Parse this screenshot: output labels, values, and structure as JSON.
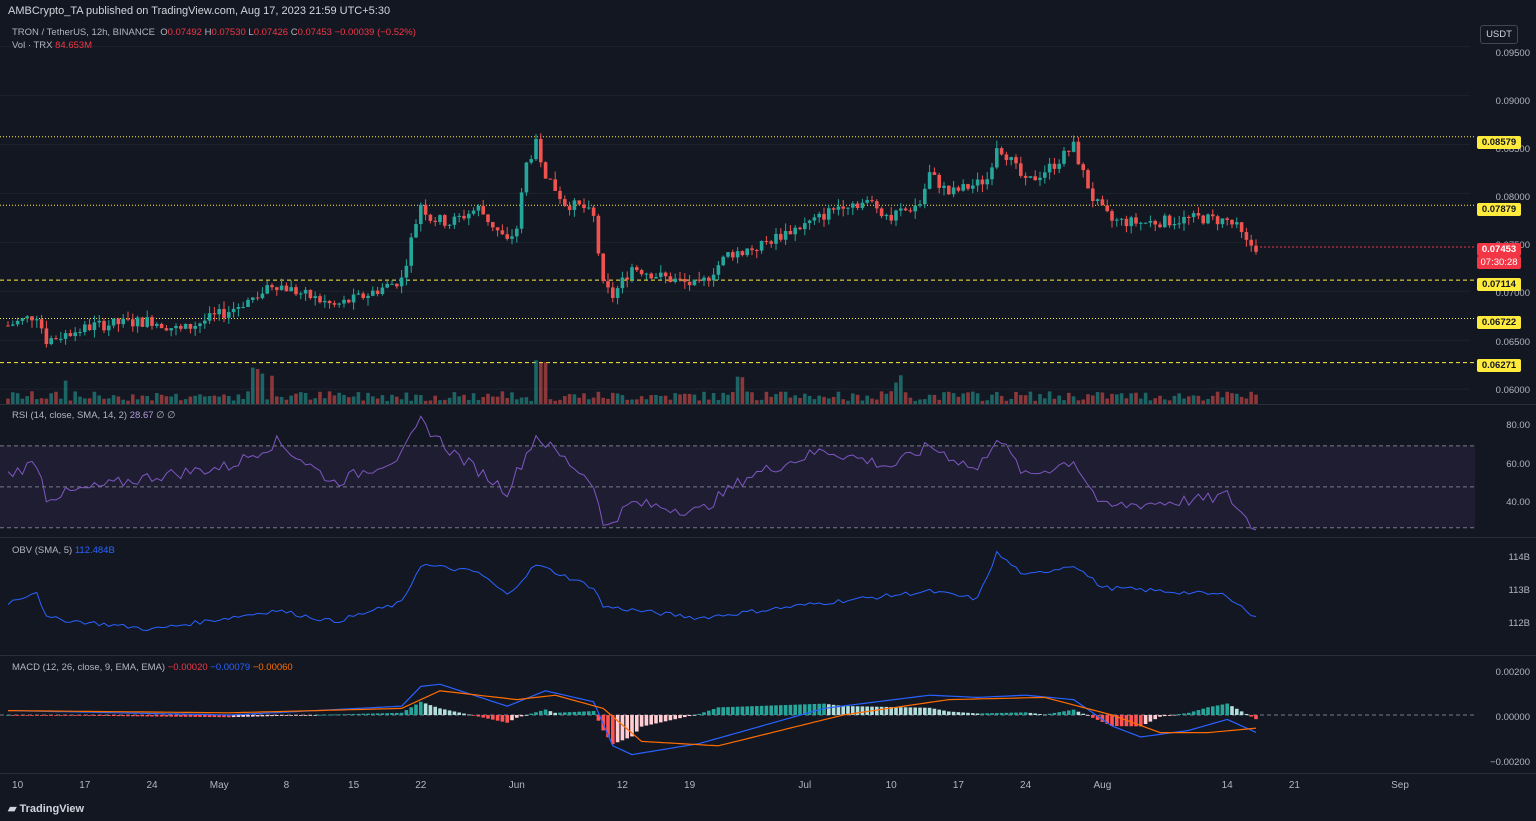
{
  "header": {
    "publisher": "AMBCrypto_TA published on TradingView.com, Aug 17, 2023 21:59 UTC+5:30"
  },
  "symbol": {
    "title": "TRON / TetherUS, 12h, BINANCE",
    "open_label": "O",
    "open": "0.07492",
    "high_label": "H",
    "high": "0.07530",
    "low_label": "L",
    "low": "0.07426",
    "close_label": "C",
    "close": "0.07453",
    "change": "−0.00039 (−0.52%)",
    "volume_label": "Vol · TRX",
    "volume": "84.653M"
  },
  "currency": "USDT",
  "price_axis": [
    "0.09500",
    "0.09000",
    "0.08500",
    "0.08000",
    "0.07500",
    "0.07000",
    "0.06500",
    "0.06000"
  ],
  "price_levels": [
    "0.08579",
    "0.07879",
    "0.07114",
    "0.06722",
    "0.06271"
  ],
  "last_price": {
    "price": "0.07453",
    "countdown": "07:30:28"
  },
  "rsi": {
    "label": "RSI (14, close, SMA, 14, 2)",
    "value": "28.67",
    "extra": "∅ ∅",
    "axis": [
      "80.00",
      "60.00",
      "40.00"
    ]
  },
  "obv": {
    "label": "OBV (SMA, 5)",
    "value": "112.484B",
    "axis": [
      "114B",
      "113B",
      "112B"
    ]
  },
  "macd": {
    "label": "MACD (12, 26, close, 9, EMA, EMA)",
    "histogram": "−0.00020",
    "macd": "−0.00079",
    "signal": "−0.00060",
    "axis": [
      "0.00200",
      "0.00000",
      "−0.00200"
    ]
  },
  "time_axis": [
    "10",
    "17",
    "24",
    "May",
    "8",
    "15",
    "22",
    "Jun",
    "12",
    "19",
    "Jul",
    "10",
    "17",
    "24",
    "Aug",
    "14",
    "21",
    "Sep"
  ],
  "footer": {
    "brand": "TradingView"
  },
  "colors": {
    "up": "#26a69a",
    "down": "#ef5350",
    "level": "#ffeb3b",
    "rsi": "#7e57c2",
    "obv": "#2962ff",
    "signal": "#ff6d00"
  },
  "chart_data": [
    {
      "type": "candlestick",
      "title": "TRON / TetherUS, 12h, BINANCE",
      "ylim": [
        0.0595,
        0.0965
      ],
      "x_start": "Apr 9, 2023",
      "x_end": "Aug 17, 2023",
      "interval": "12h",
      "horizontal_levels": [
        0.08579,
        0.07879,
        0.07114,
        0.06722,
        0.06271
      ],
      "close_keypoints": [
        [
          "Apr 9",
          0.0665
        ],
        [
          "Apr 12",
          0.0676
        ],
        [
          "Apr 13",
          0.065
        ],
        [
          "Apr 18",
          0.0665
        ],
        [
          "Apr 24",
          0.067
        ],
        [
          "Apr 27",
          0.066
        ],
        [
          "May 2",
          0.068
        ],
        [
          "May 7",
          0.0707
        ],
        [
          "May 13",
          0.0685
        ],
        [
          "May 16",
          0.0695
        ],
        [
          "May 20",
          0.0712
        ],
        [
          "May 21",
          0.0752
        ],
        [
          "May 22",
          0.079
        ],
        [
          "May 23",
          0.0775
        ],
        [
          "May 25",
          0.077
        ],
        [
          "May 28",
          0.0785
        ],
        [
          "May 31",
          0.075
        ],
        [
          "Jun 1",
          0.0765
        ],
        [
          "Jun 2",
          0.083
        ],
        [
          "Jun 3",
          0.085
        ],
        [
          "Jun 4",
          0.082
        ],
        [
          "Jun 6",
          0.079
        ],
        [
          "Jun 8",
          0.0785
        ],
        [
          "Jun 9",
          0.0775
        ],
        [
          "Jun 10",
          0.0705
        ],
        [
          "Jun 11",
          0.0695
        ],
        [
          "Jun 13",
          0.0725
        ],
        [
          "Jun 16",
          0.0715
        ],
        [
          "Jun 20",
          0.0705
        ],
        [
          "Jun 23",
          0.0738
        ],
        [
          "Jun 26",
          0.0745
        ],
        [
          "Jun 29",
          0.076
        ],
        [
          "Jul 2",
          0.0772
        ],
        [
          "Jul 5",
          0.079
        ],
        [
          "Jul 8",
          0.079
        ],
        [
          "Jul 10",
          0.0775
        ],
        [
          "Jul 13",
          0.079
        ],
        [
          "Jul 14",
          0.082
        ],
        [
          "Jul 16",
          0.08
        ],
        [
          "Jul 19",
          0.081
        ],
        [
          "Jul 20",
          0.0815
        ],
        [
          "Jul 21",
          0.085
        ],
        [
          "Jul 22",
          0.084
        ],
        [
          "Jul 24",
          0.081
        ],
        [
          "Jul 27",
          0.083
        ],
        [
          "Jul 29",
          0.0848
        ],
        [
          "Jul 30",
          0.082
        ],
        [
          "Jul 31",
          0.0795
        ],
        [
          "Aug 1",
          0.0782
        ],
        [
          "Aug 2",
          0.0772
        ],
        [
          "Aug 5",
          0.077
        ],
        [
          "Aug 8",
          0.0772
        ],
        [
          "Aug 11",
          0.0775
        ],
        [
          "Aug 14",
          0.0772
        ],
        [
          "Aug 15",
          0.0765
        ],
        [
          "Aug 16",
          0.0749
        ],
        [
          "Aug 17",
          0.07453
        ]
      ]
    },
    {
      "type": "line",
      "title": "RSI (14, close, SMA, 14, 2)",
      "ylim": [
        25,
        90
      ],
      "bands": [
        70,
        50,
        30
      ],
      "keypoints": [
        [
          "Apr 9",
          56
        ],
        [
          "Apr 12",
          62
        ],
        [
          "Apr 13",
          45
        ],
        [
          "Apr 24",
          55
        ],
        [
          "May 2",
          60
        ],
        [
          "May 7",
          72
        ],
        [
          "May 13",
          52
        ],
        [
          "May 20",
          65
        ],
        [
          "May 22",
          82
        ],
        [
          "May 25",
          68
        ],
        [
          "May 31",
          48
        ],
        [
          "Jun 3",
          75
        ],
        [
          "Jun 9",
          52
        ],
        [
          "Jun 10",
          30
        ],
        [
          "Jun 13",
          42
        ],
        [
          "Jun 20",
          38
        ],
        [
          "Jun 25",
          55
        ],
        [
          "Jul 3",
          68
        ],
        [
          "Jul 10",
          60
        ],
        [
          "Jul 14",
          70
        ],
        [
          "Jul 19",
          58
        ],
        [
          "Jul 21",
          75
        ],
        [
          "Jul 24",
          55
        ],
        [
          "Jul 29",
          63
        ],
        [
          "Aug 1",
          40
        ],
        [
          "Aug 6",
          42
        ],
        [
          "Aug 12",
          44
        ],
        [
          "Aug 14",
          46
        ],
        [
          "Aug 17",
          28.67
        ]
      ]
    },
    {
      "type": "line",
      "title": "OBV (SMA, 5)",
      "ylim": [
        111.5,
        114.6
      ],
      "keypoints": [
        [
          "Apr 9",
          112.9
        ],
        [
          "Apr 12",
          113.2
        ],
        [
          "Apr 13",
          112.5
        ],
        [
          "Apr 24",
          112.2
        ],
        [
          "May 7",
          112.7
        ],
        [
          "May 13",
          112.4
        ],
        [
          "May 20",
          112.9
        ],
        [
          "May 22",
          113.9
        ],
        [
          "May 28",
          113.7
        ],
        [
          "May 31",
          113.1
        ],
        [
          "Jun 3",
          113.9
        ],
        [
          "Jun 9",
          113.3
        ],
        [
          "Jun 10",
          112.8
        ],
        [
          "Jun 20",
          112.5
        ],
        [
          "Jul 3",
          112.9
        ],
        [
          "Jul 14",
          113.2
        ],
        [
          "Jul 19",
          113.0
        ],
        [
          "Jul 21",
          114.2
        ],
        [
          "Jul 24",
          113.6
        ],
        [
          "Jul 29",
          113.9
        ],
        [
          "Aug 1",
          113.3
        ],
        [
          "Aug 14",
          113.1
        ],
        [
          "Aug 17",
          112.484
        ]
      ]
    },
    {
      "type": "bar+line",
      "title": "MACD (12, 26, close, 9, EMA, EMA)",
      "ylim": [
        -0.0025,
        0.0025
      ],
      "macd_keypoints": [
        [
          "Apr 9",
          0.0002
        ],
        [
          "May 2",
          0.0
        ],
        [
          "May 20",
          0.0004
        ],
        [
          "May 22",
          0.0013
        ],
        [
          "May 24",
          0.0014
        ],
        [
          "May 31",
          0.0004
        ],
        [
          "Jun 4",
          0.0011
        ],
        [
          "Jun 9",
          0.0006
        ],
        [
          "Jun 11",
          -0.0014
        ],
        [
          "Jun 13",
          -0.0018
        ],
        [
          "Jun 20",
          -0.0013
        ],
        [
          "Jul 3",
          0.0003
        ],
        [
          "Jul 14",
          0.0009
        ],
        [
          "Jul 19",
          0.0008
        ],
        [
          "Jul 24",
          0.0009
        ],
        [
          "Jul 29",
          0.0007
        ],
        [
          "Aug 2",
          -0.0005
        ],
        [
          "Aug 5",
          -0.001
        ],
        [
          "Aug 10",
          -0.0007
        ],
        [
          "Aug 14",
          -0.0002
        ],
        [
          "Aug 17",
          -0.00079
        ]
      ],
      "signal_keypoints": [
        [
          "Apr 9",
          0.0002
        ],
        [
          "May 2",
          0.0001
        ],
        [
          "May 20",
          0.0003
        ],
        [
          "May 24",
          0.0011
        ],
        [
          "Jun 1",
          0.0007
        ],
        [
          "Jun 5",
          0.0009
        ],
        [
          "Jun 10",
          0.0003
        ],
        [
          "Jun 14",
          -0.0012
        ],
        [
          "Jun 22",
          -0.0014
        ],
        [
          "Jul 5",
          0.0
        ],
        [
          "Jul 16",
          0.0007
        ],
        [
          "Jul 26",
          0.0008
        ],
        [
          "Aug 2",
          0.0
        ],
        [
          "Aug 7",
          -0.0008
        ],
        [
          "Aug 12",
          -0.0008
        ],
        [
          "Aug 17",
          -0.0006
        ]
      ]
    }
  ]
}
